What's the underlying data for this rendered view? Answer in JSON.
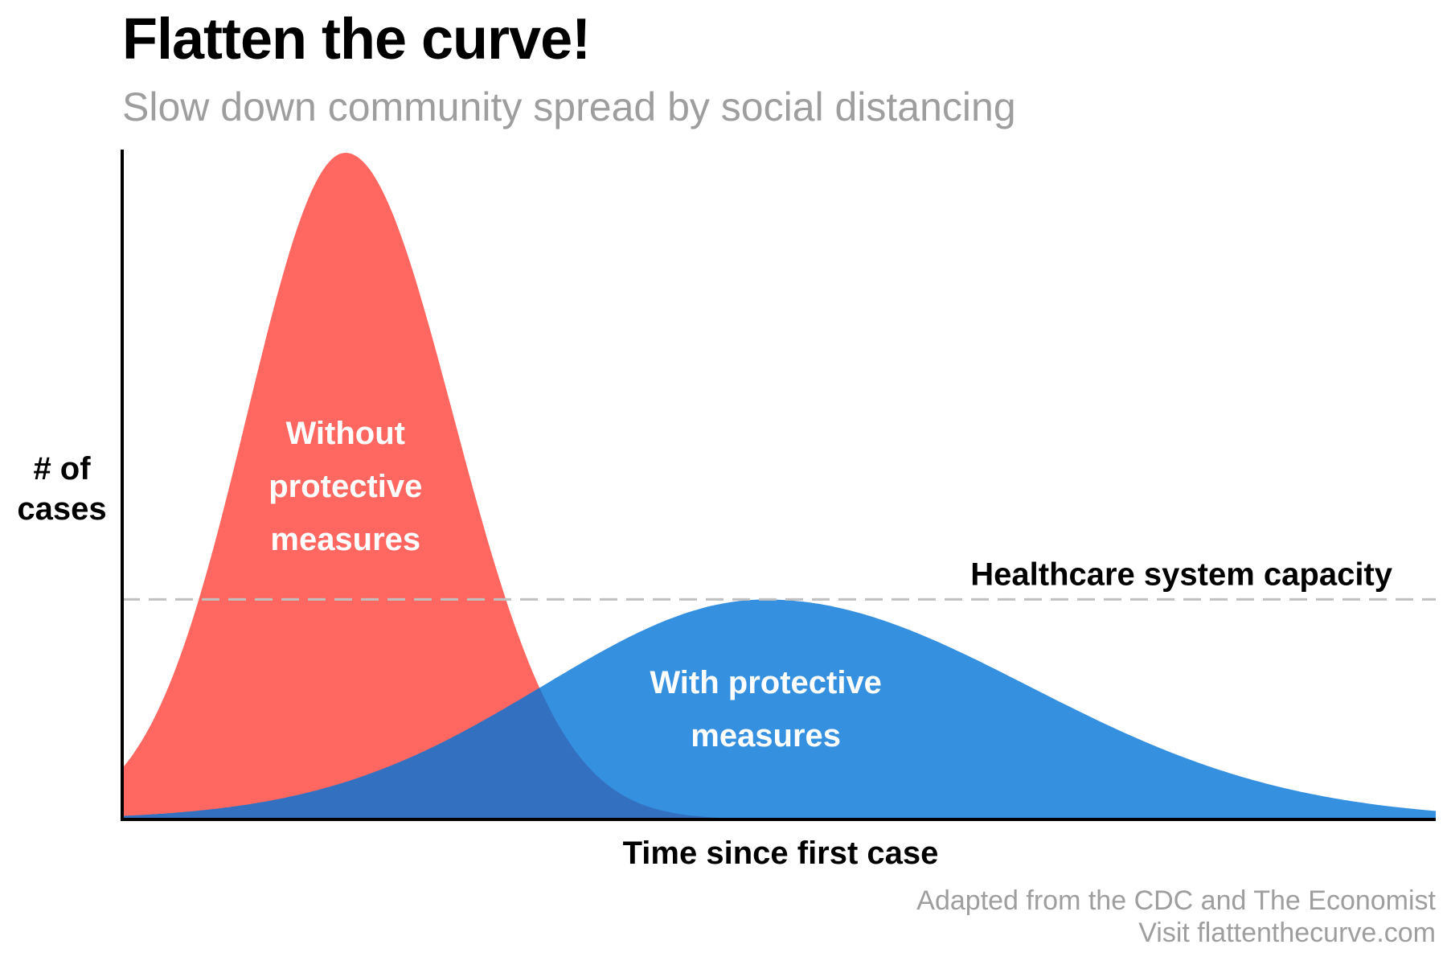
{
  "title": "Flatten the curve!",
  "subtitle": "Slow down community spread by social distancing",
  "footer": {
    "line1": "Adapted from the CDC and The Economist",
    "line2": "Visit flattenthecurve.com"
  },
  "chart_data": {
    "type": "area",
    "xlabel": "Time since first case",
    "ylabel": [
      "# of",
      "cases"
    ],
    "grid": false,
    "ticks": "none",
    "xlim": [
      0,
      100
    ],
    "ylim": [
      0,
      100
    ],
    "series": [
      {
        "name": "Without protective measures",
        "label_lines": [
          "Without",
          "protective",
          "measures"
        ],
        "color": "#ff6760",
        "peak_x": 17,
        "peak_y": 100,
        "left_spread": 7.5,
        "right_spread": 8.2
      },
      {
        "name": "With protective measures",
        "label_lines": [
          "With protective",
          "measures"
        ],
        "color": "#3590e0",
        "peak_x": 49,
        "peak_y": 33,
        "left_spread": 17,
        "right_spread": 20
      }
    ],
    "overlap_color": "#3470c0",
    "capacity": {
      "label": "Healthcare system capacity",
      "y": 33,
      "color": "#c0c0c0"
    }
  }
}
